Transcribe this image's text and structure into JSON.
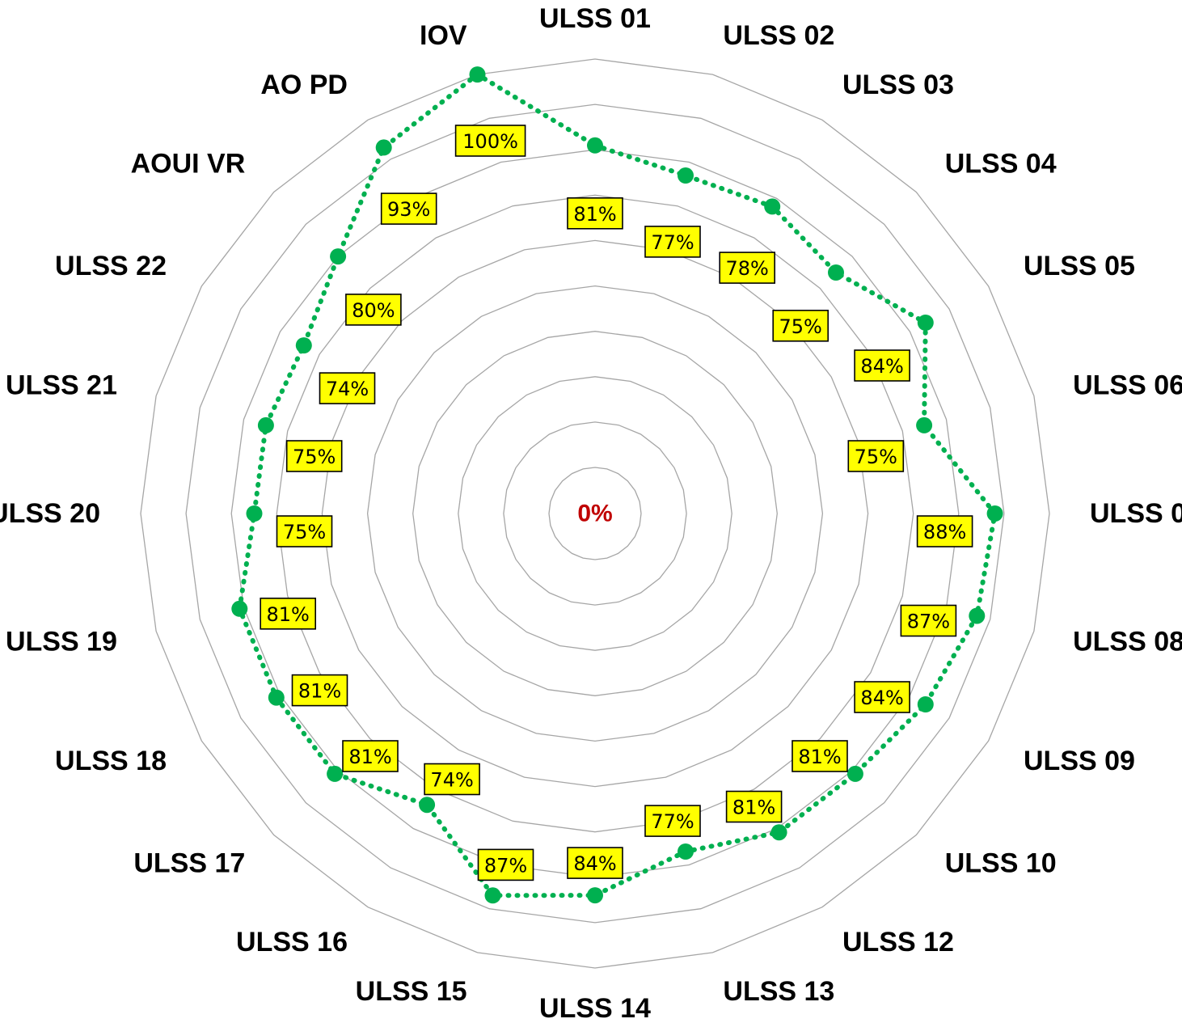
{
  "chart_data": {
    "type": "radar",
    "categories": [
      "ULSS 01",
      "ULSS 02",
      "ULSS 03",
      "ULSS 04",
      "ULSS 05",
      "ULSS 06",
      "ULSS 07",
      "ULSS 08",
      "ULSS 09",
      "ULSS 10",
      "ULSS 12",
      "ULSS 13",
      "ULSS 14",
      "ULSS 15",
      "ULSS 16",
      "ULSS 17",
      "ULSS 18",
      "ULSS 19",
      "ULSS 20",
      "ULSS 21",
      "ULSS 22",
      "AOUI VR",
      "AO PD",
      "IOV"
    ],
    "series": [
      {
        "values": [
          81,
          77,
          78,
          75,
          84,
          75,
          88,
          87,
          84,
          81,
          81,
          77,
          84,
          87,
          74,
          81,
          81,
          81,
          75,
          75,
          74,
          80,
          93,
          100
        ],
        "labels": [
          "81%",
          "77%",
          "78%",
          "75%",
          "84%",
          "75%",
          "88%",
          "87%",
          "84%",
          "81%",
          "81%",
          "77%",
          "84%",
          "87%",
          "74%",
          "81%",
          "81%",
          "81%",
          "75%",
          "75%",
          "74%",
          "80%",
          "93%",
          "100%"
        ],
        "color": "#00b050"
      }
    ],
    "center_label": "0%",
    "rlim": [
      0,
      100
    ],
    "grid": true,
    "legend": "none"
  },
  "colors": {
    "series": "#00b050",
    "label_fill": "#ffff00",
    "center_label": "#c00000",
    "grid": "#a6a6a6"
  }
}
